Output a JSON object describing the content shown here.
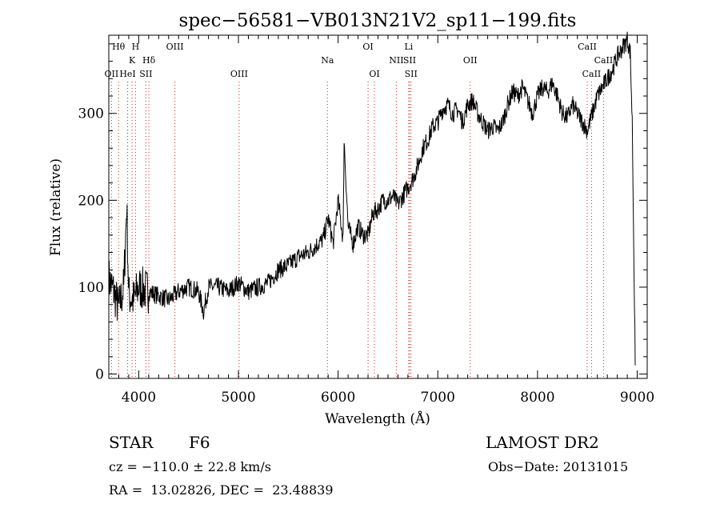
{
  "chart_data": {
    "type": "line",
    "title": "spec−56581−VB013N21V2_sp11−199.fits",
    "xlabel": "Wavelength (Å)",
    "ylabel": "Flux (relative)",
    "xlim": [
      3700,
      9100
    ],
    "ylim": [
      -5,
      390
    ],
    "x_ticks": [
      4000,
      5000,
      6000,
      7000,
      8000,
      9000
    ],
    "y_ticks": [
      0,
      100,
      200,
      300
    ],
    "grid": false,
    "line_markers": [
      {
        "label": "Hθ",
        "x": 3798,
        "row": 1
      },
      {
        "label": "H",
        "x": 3968,
        "row": 1
      },
      {
        "label": "OIII",
        "x": 4363,
        "row": 1
      },
      {
        "label": "OI",
        "x": 6300,
        "row": 1
      },
      {
        "label": "Li",
        "x": 6708,
        "row": 1
      },
      {
        "label": "CaII",
        "x": 8498,
        "row": 1
      },
      {
        "label": "K",
        "x": 3934,
        "row": 2
      },
      {
        "label": "Hδ",
        "x": 4102,
        "row": 2
      },
      {
        "label": "Na",
        "x": 5893,
        "row": 2
      },
      {
        "label": "NII",
        "x": 6584,
        "row": 2
      },
      {
        "label": "SII",
        "x": 6717,
        "row": 2
      },
      {
        "label": "OII",
        "x": 7325,
        "row": 2
      },
      {
        "label": "CaII",
        "x": 8662,
        "row": 2
      },
      {
        "label": "OII",
        "x": 3727,
        "row": 3
      },
      {
        "label": "HeI",
        "x": 3889,
        "row": 3
      },
      {
        "label": "SII",
        "x": 4072,
        "row": 3
      },
      {
        "label": "OIII",
        "x": 5007,
        "row": 3
      },
      {
        "label": "OI",
        "x": 6364,
        "row": 3
      },
      {
        "label": "SII",
        "x": 6731,
        "row": 3
      },
      {
        "label": "CaII",
        "x": 8542,
        "row": 3
      }
    ],
    "series": [
      {
        "x": [
          3700,
          3750,
          3800,
          3850,
          3880,
          3900,
          3950,
          4000,
          4100,
          4200,
          4300,
          4400,
          4500,
          4600,
          4650,
          4700,
          4800,
          4900,
          5000,
          5100,
          5200,
          5300,
          5400,
          5500,
          5600,
          5700,
          5800,
          5850,
          5900,
          5950,
          6000,
          6050,
          6060,
          6100,
          6150,
          6200,
          6250,
          6300,
          6350,
          6400,
          6450,
          6500,
          6550,
          6600,
          6650,
          6700,
          6750,
          6800,
          6850,
          6900,
          6950,
          7000,
          7050,
          7100,
          7150,
          7200,
          7250,
          7300,
          7350,
          7400,
          7450,
          7500,
          7550,
          7600,
          7650,
          7700,
          7750,
          7800,
          7850,
          7900,
          7950,
          8000,
          8050,
          8100,
          8150,
          8200,
          8250,
          8300,
          8350,
          8400,
          8450,
          8500,
          8550,
          8600,
          8650,
          8700,
          8750,
          8800,
          8850,
          8900,
          8930,
          8950,
          8980
        ],
        "y": [
          110,
          95,
          75,
          100,
          195,
          90,
          85,
          100,
          95,
          90,
          85,
          95,
          100,
          95,
          72,
          100,
          100,
          95,
          105,
          95,
          100,
          105,
          120,
          125,
          135,
          140,
          150,
          155,
          180,
          150,
          200,
          155,
          270,
          170,
          150,
          170,
          160,
          160,
          185,
          190,
          200,
          200,
          205,
          195,
          205,
          215,
          225,
          240,
          260,
          270,
          285,
          290,
          305,
          310,
          300,
          305,
          290,
          310,
          315,
          300,
          290,
          280,
          285,
          280,
          290,
          310,
          325,
          320,
          330,
          315,
          300,
          320,
          330,
          325,
          335,
          320,
          300,
          295,
          310,
          300,
          290,
          280,
          300,
          320,
          330,
          340,
          350,
          365,
          375,
          385,
          370,
          290,
          10
        ]
      }
    ]
  },
  "info": {
    "object_type": "STAR",
    "subclass": "F6",
    "survey": "LAMOST DR2",
    "velocity": "cz = −110.0 ± 22.8 km/s",
    "obs_date": "Obs−Date: 20131015",
    "coords": "RA =  13.02826, DEC =  23.48839"
  }
}
